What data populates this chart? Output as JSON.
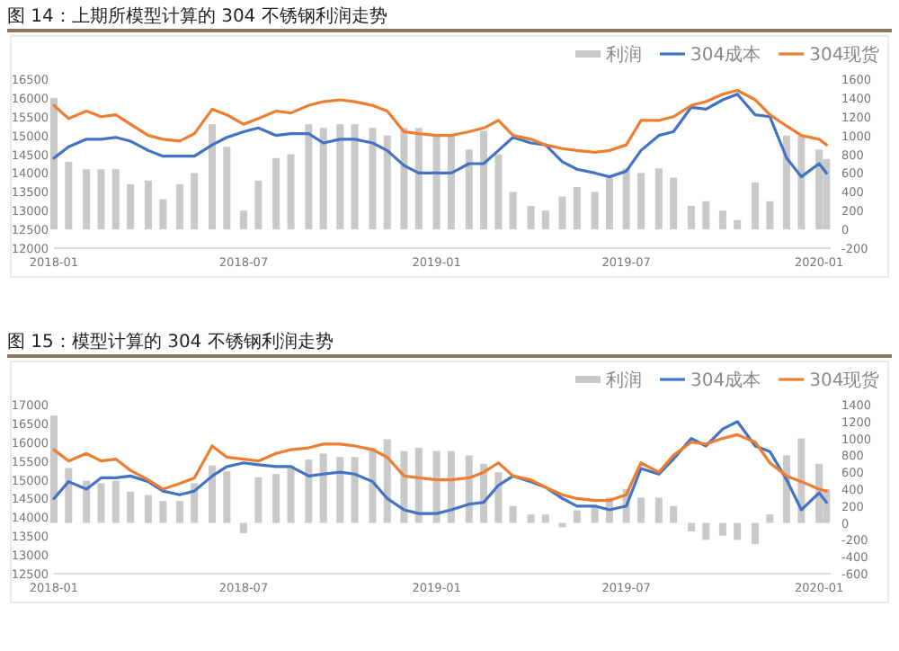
{
  "chart_data": [
    {
      "type": "bar",
      "title": "图 14：上期所模型计算的 304 不锈钢利润走势",
      "legend": "top right",
      "x": [
        "2018-01-01",
        "2018-01-15",
        "2018-02-01",
        "2018-02-15",
        "2018-03-01",
        "2018-03-15",
        "2018-04-01",
        "2018-04-15",
        "2018-05-01",
        "2018-05-15",
        "2018-06-01",
        "2018-06-15",
        "2018-07-01",
        "2018-07-15",
        "2018-08-01",
        "2018-08-15",
        "2018-09-01",
        "2018-09-15",
        "2018-10-01",
        "2018-10-15",
        "2018-11-01",
        "2018-11-15",
        "2018-12-01",
        "2018-12-15",
        "2019-01-01",
        "2019-01-15",
        "2019-02-01",
        "2019-02-15",
        "2019-03-01",
        "2019-03-15",
        "2019-04-01",
        "2019-04-15",
        "2019-05-01",
        "2019-05-15",
        "2019-06-01",
        "2019-06-15",
        "2019-07-01",
        "2019-07-15",
        "2019-08-01",
        "2019-08-15",
        "2019-09-01",
        "2019-09-15",
        "2019-10-01",
        "2019-10-15",
        "2019-11-01",
        "2019-11-15",
        "2019-12-01",
        "2019-12-15",
        "2020-01-01",
        "2020-01-08"
      ],
      "xlim": [
        "2018-01-01",
        "2020-01-12"
      ],
      "xticks": [
        "2018-01",
        "2018-07",
        "2019-01",
        "2019-07",
        "2020-01"
      ],
      "ylim": [
        12000,
        16500
      ],
      "yticks": [
        12000,
        12500,
        13000,
        13500,
        14000,
        14500,
        15000,
        15500,
        16000,
        16500
      ],
      "y2lim": [
        -200,
        1600
      ],
      "y2ticks": [
        -200,
        0,
        200,
        400,
        600,
        800,
        1000,
        1200,
        1400,
        1600
      ],
      "series": [
        {
          "name": "利润",
          "axis": "y2",
          "color": "#c9c9c9",
          "values": [
            1400,
            720,
            640,
            640,
            640,
            480,
            520,
            320,
            480,
            600,
            1120,
            880,
            200,
            520,
            760,
            800,
            1120,
            1080,
            1120,
            1120,
            1080,
            1000,
            1080,
            1080,
            1000,
            1000,
            850,
            1050,
            800,
            400,
            250,
            200,
            350,
            450,
            400,
            550,
            650,
            600,
            650,
            550,
            250,
            300,
            200,
            100,
            500,
            300,
            1000,
            1000,
            850,
            750
          ]
        },
        {
          "name": "304成本",
          "type": "line",
          "color": "#4472c4",
          "values": [
            14400,
            14700,
            14900,
            14900,
            14950,
            14850,
            14600,
            14450,
            14450,
            14450,
            14750,
            14950,
            15100,
            15200,
            15000,
            15050,
            15050,
            14800,
            14900,
            14900,
            14800,
            14600,
            14200,
            14000,
            14000,
            14000,
            14250,
            14250,
            14600,
            14950,
            14800,
            14750,
            14300,
            14100,
            14000,
            13900,
            14050,
            14600,
            15000,
            15100,
            15750,
            15700,
            15950,
            16100,
            15550,
            15500,
            14400,
            13900,
            14250,
            14000
          ]
        },
        {
          "name": "304现货",
          "type": "line",
          "color": "#ed7d31",
          "values": [
            15800,
            15450,
            15650,
            15500,
            15550,
            15300,
            15000,
            14900,
            14850,
            15050,
            15700,
            15550,
            15300,
            15450,
            15650,
            15600,
            15800,
            15900,
            15950,
            15900,
            15800,
            15650,
            15100,
            15050,
            15000,
            15000,
            15100,
            15200,
            15400,
            15000,
            14900,
            14750,
            14650,
            14600,
            14550,
            14600,
            14750,
            15400,
            15400,
            15500,
            15800,
            15900,
            16100,
            16200,
            15950,
            15550,
            15250,
            15000,
            14900,
            14750
          ]
        }
      ]
    },
    {
      "type": "bar",
      "title": "图 15：模型计算的 304 不锈钢利润走势",
      "legend": "top right",
      "x": [
        "2018-01-01",
        "2018-01-15",
        "2018-02-01",
        "2018-02-15",
        "2018-03-01",
        "2018-03-15",
        "2018-04-01",
        "2018-04-15",
        "2018-05-01",
        "2018-05-15",
        "2018-06-01",
        "2018-06-15",
        "2018-07-01",
        "2018-07-15",
        "2018-08-01",
        "2018-08-15",
        "2018-09-01",
        "2018-09-15",
        "2018-10-01",
        "2018-10-15",
        "2018-11-01",
        "2018-11-15",
        "2018-12-01",
        "2018-12-15",
        "2019-01-01",
        "2019-01-15",
        "2019-02-01",
        "2019-02-15",
        "2019-03-01",
        "2019-03-15",
        "2019-04-01",
        "2019-04-15",
        "2019-05-01",
        "2019-05-15",
        "2019-06-01",
        "2019-06-15",
        "2019-07-01",
        "2019-07-15",
        "2019-08-01",
        "2019-08-15",
        "2019-09-01",
        "2019-09-15",
        "2019-10-01",
        "2019-10-15",
        "2019-11-01",
        "2019-11-15",
        "2019-12-01",
        "2019-12-15",
        "2020-01-01",
        "2020-01-08"
      ],
      "xlim": [
        "2018-01-01",
        "2020-01-12"
      ],
      "xticks": [
        "2018-01",
        "2018-07",
        "2019-01",
        "2019-07",
        "2020-01"
      ],
      "ylim": [
        12500,
        17000
      ],
      "yticks": [
        12500,
        13000,
        13500,
        14000,
        14500,
        15000,
        15500,
        16000,
        16500,
        17000
      ],
      "y2lim": [
        -600,
        1400
      ],
      "y2ticks": [
        -600,
        -400,
        -200,
        0,
        200,
        400,
        600,
        800,
        1000,
        1200,
        1400
      ],
      "series": [
        {
          "name": "利润",
          "axis": "y2",
          "color": "#c9c9c9",
          "values": [
            1270,
            650,
            500,
            470,
            500,
            370,
            330,
            260,
            260,
            470,
            680,
            610,
            -120,
            540,
            580,
            680,
            750,
            820,
            780,
            780,
            890,
            990,
            850,
            890,
            850,
            850,
            800,
            700,
            600,
            200,
            100,
            100,
            -50,
            150,
            200,
            300,
            400,
            300,
            300,
            200,
            -100,
            -200,
            -150,
            -200,
            -250,
            100,
            800,
            1000,
            700,
            400
          ]
        },
        {
          "name": "304成本",
          "type": "line",
          "color": "#4472c4",
          "values": [
            14500,
            14950,
            14750,
            15050,
            15050,
            15100,
            14950,
            14700,
            14600,
            14700,
            15100,
            15350,
            15450,
            15400,
            15350,
            15350,
            15100,
            15150,
            15200,
            15150,
            14950,
            14500,
            14200,
            14100,
            14100,
            14200,
            14350,
            14400,
            14850,
            15100,
            14950,
            14800,
            14500,
            14300,
            14300,
            14200,
            14300,
            15300,
            15150,
            15550,
            16100,
            15900,
            16350,
            16550,
            15900,
            15750,
            15000,
            14200,
            14650,
            14400
          ]
        },
        {
          "name": "304现货",
          "type": "line",
          "color": "#ed7d31",
          "values": [
            15800,
            15500,
            15700,
            15500,
            15550,
            15250,
            15000,
            14750,
            14900,
            15050,
            15900,
            15600,
            15550,
            15500,
            15700,
            15800,
            15850,
            15950,
            15950,
            15900,
            15800,
            15600,
            15100,
            15050,
            15000,
            15000,
            15050,
            15200,
            15450,
            15100,
            15000,
            14800,
            14600,
            14500,
            14450,
            14450,
            14600,
            15450,
            15200,
            15650,
            16000,
            15950,
            16100,
            16200,
            16000,
            15450,
            15100,
            14950,
            14750,
            14700
          ]
        }
      ]
    }
  ]
}
